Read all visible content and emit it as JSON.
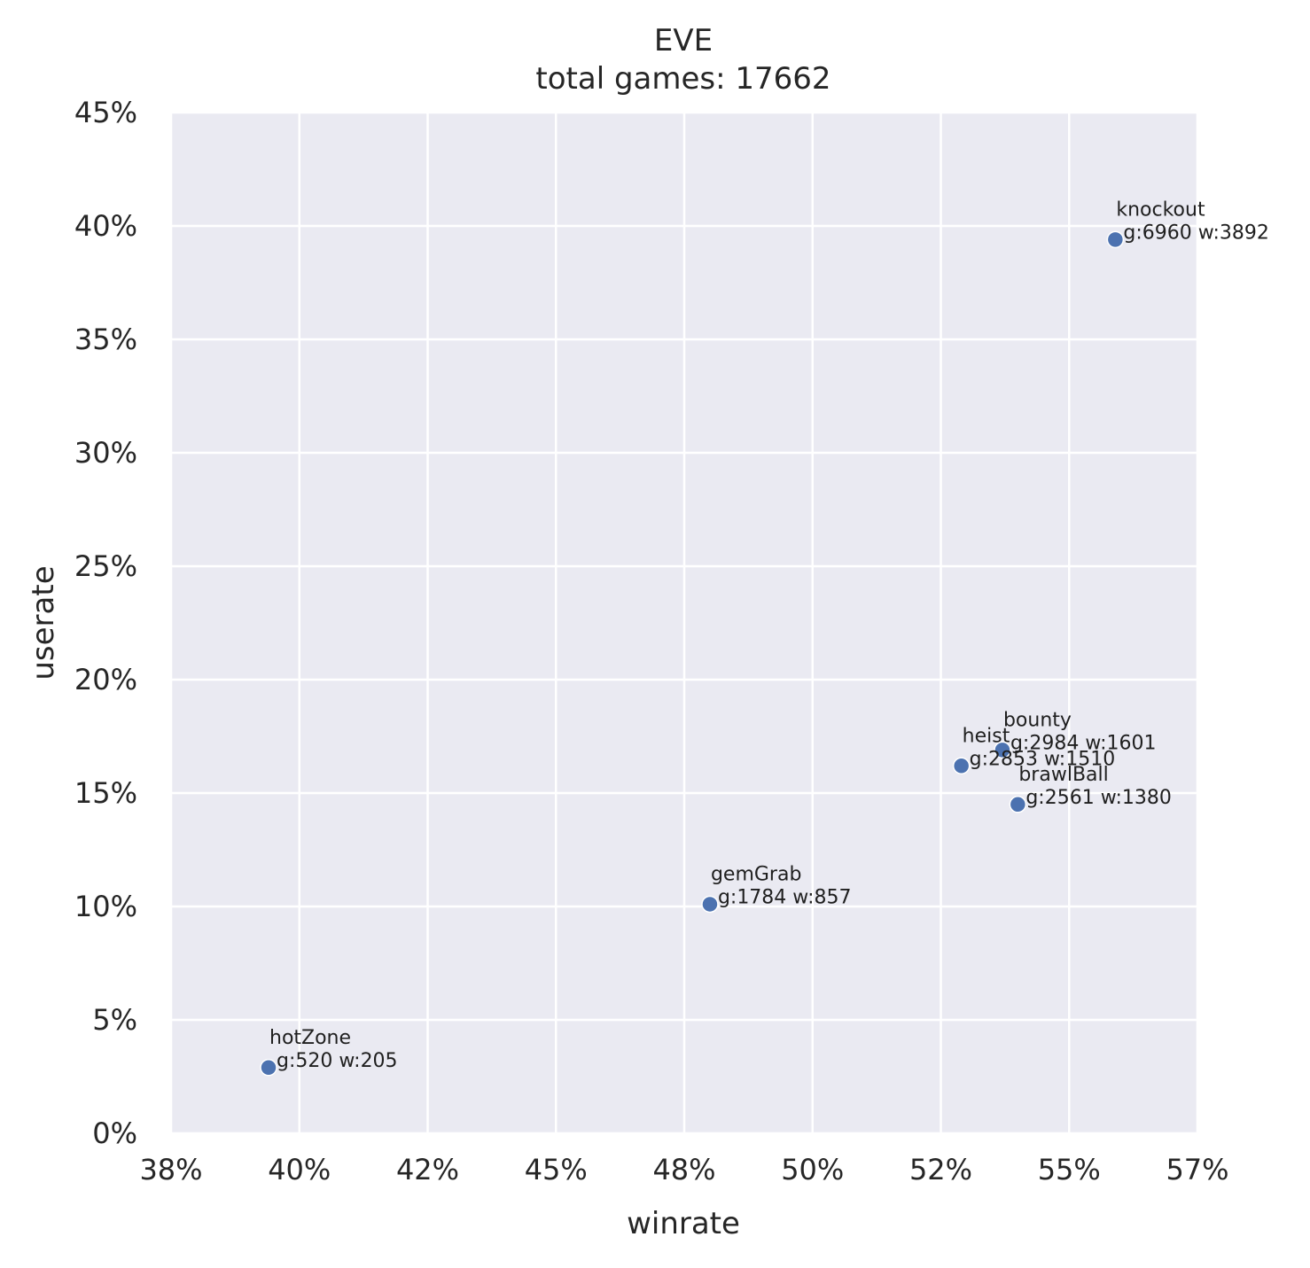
{
  "chart_data": {
    "type": "scatter",
    "title": "EVE",
    "subtitle": "total games: 17662",
    "xlabel": "winrate",
    "ylabel": "userate",
    "xlim": [
      0.375,
      0.575
    ],
    "ylim": [
      0.0,
      0.45
    ],
    "xticks": [
      {
        "value": 0.375,
        "label": "38%"
      },
      {
        "value": 0.4,
        "label": "40%"
      },
      {
        "value": 0.425,
        "label": "42%"
      },
      {
        "value": 0.45,
        "label": "45%"
      },
      {
        "value": 0.475,
        "label": "48%"
      },
      {
        "value": 0.5,
        "label": "50%"
      },
      {
        "value": 0.525,
        "label": "52%"
      },
      {
        "value": 0.55,
        "label": "55%"
      },
      {
        "value": 0.575,
        "label": "57%"
      }
    ],
    "yticks": [
      {
        "value": 0.0,
        "label": "0%"
      },
      {
        "value": 0.05,
        "label": "5%"
      },
      {
        "value": 0.1,
        "label": "10%"
      },
      {
        "value": 0.15,
        "label": "15%"
      },
      {
        "value": 0.2,
        "label": "20%"
      },
      {
        "value": 0.25,
        "label": "25%"
      },
      {
        "value": 0.3,
        "label": "30%"
      },
      {
        "value": 0.35,
        "label": "35%"
      },
      {
        "value": 0.4,
        "label": "40%"
      },
      {
        "value": 0.45,
        "label": "45%"
      }
    ],
    "grid": true,
    "colors": {
      "background": "#eaeaf2",
      "grid": "#ffffff",
      "point": "#4c72b0"
    },
    "points": [
      {
        "name": "knockout",
        "stats": "g:6960 w:3892",
        "x": 0.559,
        "y": 0.394
      },
      {
        "name": "bounty",
        "stats": "g:2984 w:1601",
        "x": 0.537,
        "y": 0.169
      },
      {
        "name": "heist",
        "stats": "g:2853 w:1510",
        "x": 0.529,
        "y": 0.162
      },
      {
        "name": "brawlBall",
        "stats": "g:2561 w:1380",
        "x": 0.54,
        "y": 0.145
      },
      {
        "name": "gemGrab",
        "stats": "g:1784 w:857",
        "x": 0.48,
        "y": 0.101
      },
      {
        "name": "hotZone",
        "stats": "g:520 w:205",
        "x": 0.394,
        "y": 0.029
      }
    ]
  }
}
